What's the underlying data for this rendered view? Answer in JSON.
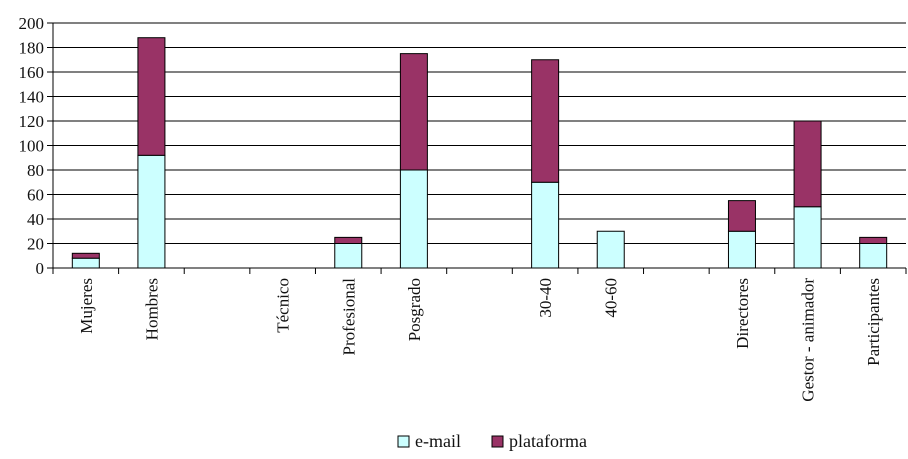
{
  "chart_data": {
    "type": "bar",
    "stacked": true,
    "categories": [
      "Mujeres",
      "Hombres",
      "",
      "Técnico",
      "Profesional",
      "Posgrado",
      "",
      "30-40",
      "40-60",
      "",
      "Directores",
      "Gestor - animador",
      "Participantes"
    ],
    "series": [
      {
        "name": "e-mail",
        "values": [
          8,
          92,
          0,
          0,
          20,
          80,
          0,
          70,
          30,
          0,
          30,
          50,
          20
        ]
      },
      {
        "name": "plataforma",
        "values": [
          4,
          96,
          0,
          0,
          5,
          95,
          0,
          100,
          0,
          0,
          25,
          70,
          5
        ]
      }
    ],
    "ylim": [
      0,
      200
    ],
    "yticks": [
      0,
      20,
      40,
      60,
      80,
      100,
      120,
      140,
      160,
      180,
      200
    ],
    "ytick_labels": [
      "0",
      "20",
      "40",
      "60",
      "80",
      "100",
      "120",
      "140",
      "160",
      "180",
      "200"
    ],
    "xlabel": "",
    "ylabel": "",
    "title": "",
    "grid": true,
    "legend": {
      "position": "bottom",
      "entries": [
        "e-mail",
        "plataforma"
      ]
    },
    "colors": {
      "e-mail": "#ccffff",
      "plataforma": "#993366",
      "outline": "#000000",
      "grid": "#000000"
    }
  }
}
